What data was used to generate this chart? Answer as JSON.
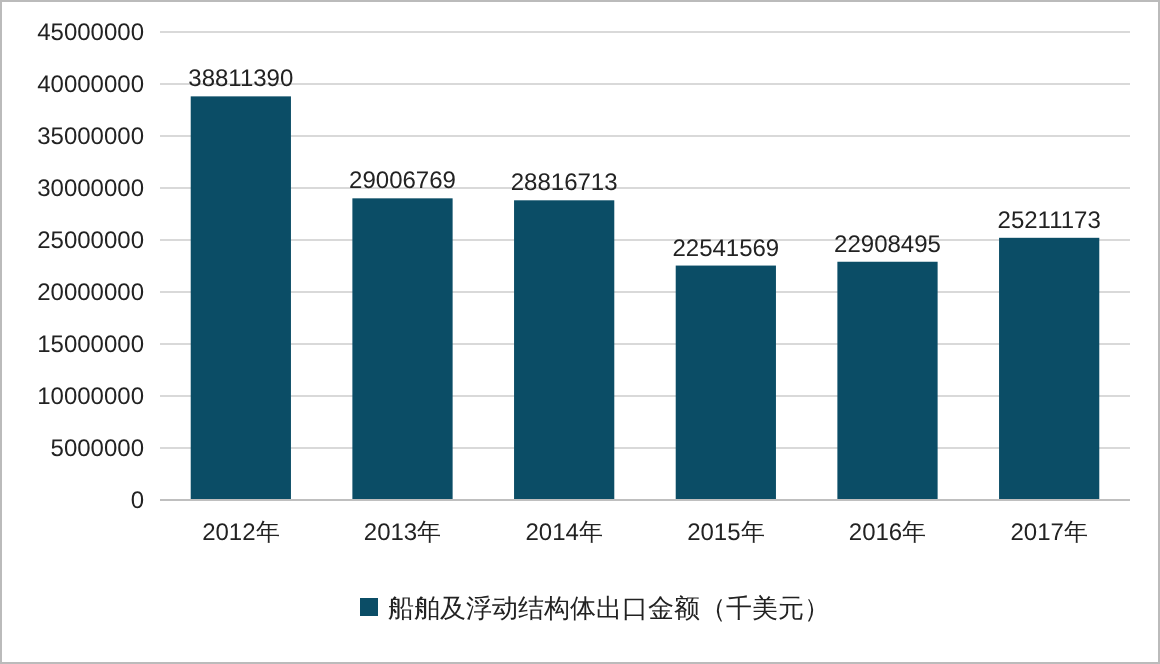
{
  "chart_data": {
    "type": "bar",
    "categories": [
      "2012年",
      "2013年",
      "2014年",
      "2015年",
      "2016年",
      "2017年"
    ],
    "series": [
      {
        "name": "船舶及浮动结构体出口金额（千美元）",
        "color": "#0b4d66",
        "values": [
          38811390,
          29006769,
          28816713,
          22541569,
          22908495,
          25211173
        ]
      }
    ],
    "ylim": [
      0,
      45000000
    ],
    "yticks": [
      0,
      5000000,
      10000000,
      15000000,
      20000000,
      25000000,
      30000000,
      35000000,
      40000000,
      45000000
    ],
    "grid": "y",
    "legend": "bottom",
    "data_labels": true
  }
}
